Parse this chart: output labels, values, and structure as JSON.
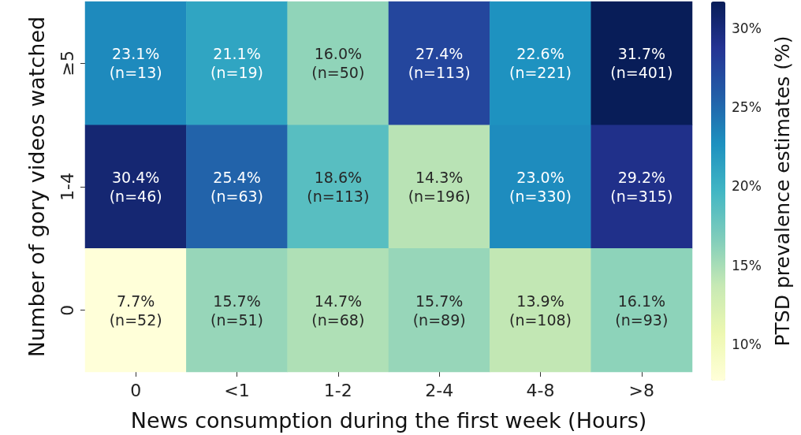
{
  "chart_data": {
    "type": "heatmap",
    "xlabel": "News consumption during the first week (Hours)",
    "ylabel": "Number of gory videos watched",
    "clabel": "PTSD prevalence estimates (%)",
    "categories": [
      "0",
      "<1",
      "1-2",
      "2-4",
      "4-8",
      ">8"
    ],
    "y_categories": [
      "≥5",
      "1-4",
      "0"
    ],
    "cells": [
      [
        23.1,
        21.1,
        16.0,
        27.4,
        22.6,
        31.7
      ],
      [
        30.4,
        25.4,
        18.6,
        14.3,
        23.0,
        29.2
      ],
      [
        7.7,
        15.7,
        14.7,
        15.7,
        13.9,
        16.1
      ]
    ],
    "cell_labels": [
      [
        "23.1%\n(n=13)",
        "21.1%\n(n=19)",
        "16.0%\n(n=50)",
        "27.4%\n(n=113)",
        "22.6%\n(n=221)",
        "31.7%\n(n=401)"
      ],
      [
        "30.4%\n(n=46)",
        "25.4%\n(n=63)",
        "18.6%\n(n=113)",
        "14.3%\n(n=196)",
        "23.0%\n(n=330)",
        "29.2%\n(n=315)"
      ],
      [
        "7.7%\n(n=52)",
        "15.7%\n(n=51)",
        "14.7%\n(n=68)",
        "15.7%\n(n=89)",
        "13.9%\n(n=108)",
        "16.1%\n(n=93)"
      ]
    ],
    "clim": [
      7.7,
      31.7
    ],
    "cticks": [
      {
        "value": 10,
        "label": "10%"
      },
      {
        "value": 15,
        "label": "15%"
      },
      {
        "value": 20,
        "label": "20%"
      },
      {
        "value": 25,
        "label": "25%"
      },
      {
        "value": 30,
        "label": "30%"
      }
    ]
  }
}
